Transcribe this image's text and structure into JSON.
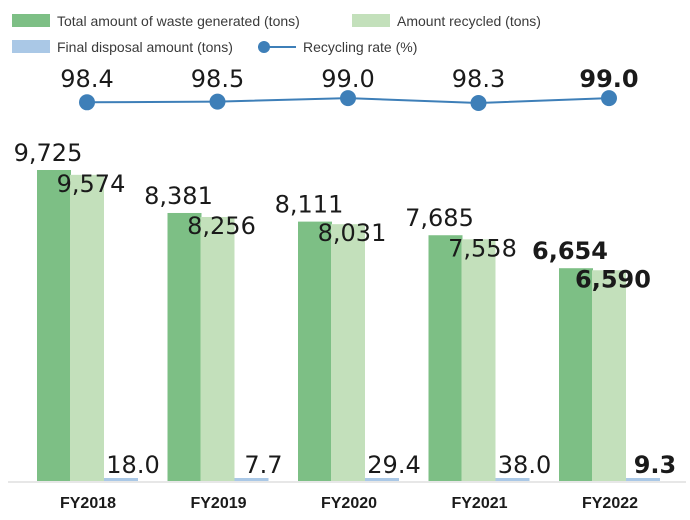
{
  "chart_data": {
    "type": "bar",
    "categories": [
      "FY2018",
      "FY2019",
      "FY2020",
      "FY2021",
      "FY2022"
    ],
    "series": [
      {
        "name": "Total amount of waste generated (tons)",
        "values": [
          9725,
          8381,
          8111,
          7685,
          6654
        ],
        "labels": [
          "9,725",
          "8,381",
          "8,111",
          "7,685",
          "6,654"
        ],
        "color": "#7dbf85"
      },
      {
        "name": "Amount recycled (tons)",
        "values": [
          9574,
          8256,
          8031,
          7558,
          6590
        ],
        "labels": [
          "9,574",
          "8,256",
          "8,031",
          "7,558",
          "6,590"
        ],
        "color": "#c3e0bb"
      },
      {
        "name": "Final disposal amount (tons)",
        "values": [
          18.0,
          7.7,
          29.4,
          38.0,
          9.3
        ],
        "labels": [
          "18.0",
          "7.7",
          "29.4",
          "38.0",
          "9.3"
        ],
        "color": "#aac8e6"
      },
      {
        "name": "Recycling rate (%)",
        "type": "line",
        "values": [
          98.4,
          98.5,
          99.0,
          98.3,
          99.0
        ],
        "labels": [
          "98.4",
          "98.5",
          "99.0",
          "98.3",
          "99.0"
        ],
        "color": "#3e7fb8"
      }
    ],
    "highlight_category": "FY2022",
    "ylim": [
      0,
      10000
    ],
    "grid": false,
    "legend_position": "top"
  }
}
